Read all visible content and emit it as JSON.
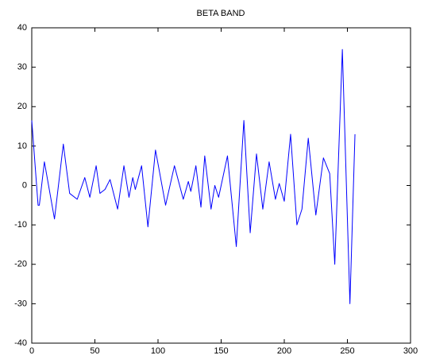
{
  "chart_data": {
    "type": "line",
    "title": "BETA BAND",
    "x": [
      0,
      5,
      6,
      10,
      18,
      25,
      30,
      36,
      42,
      46,
      51,
      54,
      58,
      62,
      68,
      73,
      77,
      80,
      82,
      87,
      92,
      98,
      106,
      113,
      120,
      124,
      126,
      130,
      134,
      137,
      142,
      145,
      148,
      155,
      162,
      168,
      173,
      178,
      183,
      188,
      193,
      196,
      200,
      205,
      210,
      214,
      219,
      225,
      231,
      236,
      240,
      246,
      252,
      256
    ],
    "series": [
      {
        "name": "BETA BAND",
        "color": "#0000ff",
        "values": [
          16.5,
          -5,
          -5,
          6,
          -8.5,
          10.5,
          -2,
          -3.5,
          2,
          -3,
          5,
          -2,
          -1,
          1.5,
          -6,
          5,
          -3,
          2,
          -1,
          5,
          -10.5,
          9,
          -5,
          5,
          -3.5,
          1,
          -1.5,
          5,
          -5.5,
          7.5,
          -6,
          0,
          -3,
          7.5,
          -15.5,
          16.5,
          -12,
          8,
          -6,
          6,
          -3.5,
          0.5,
          -4,
          13,
          -10,
          -6,
          12,
          -7.5,
          7,
          3,
          -20,
          34.5,
          -30,
          13
        ]
      }
    ],
    "xlim": [
      0,
      300
    ],
    "xticks": [
      0,
      50,
      100,
      150,
      200,
      250,
      300
    ],
    "ylim": [
      -40,
      40
    ],
    "yticks": [
      -40,
      -30,
      -20,
      -10,
      0,
      10,
      20,
      30,
      40
    ]
  }
}
